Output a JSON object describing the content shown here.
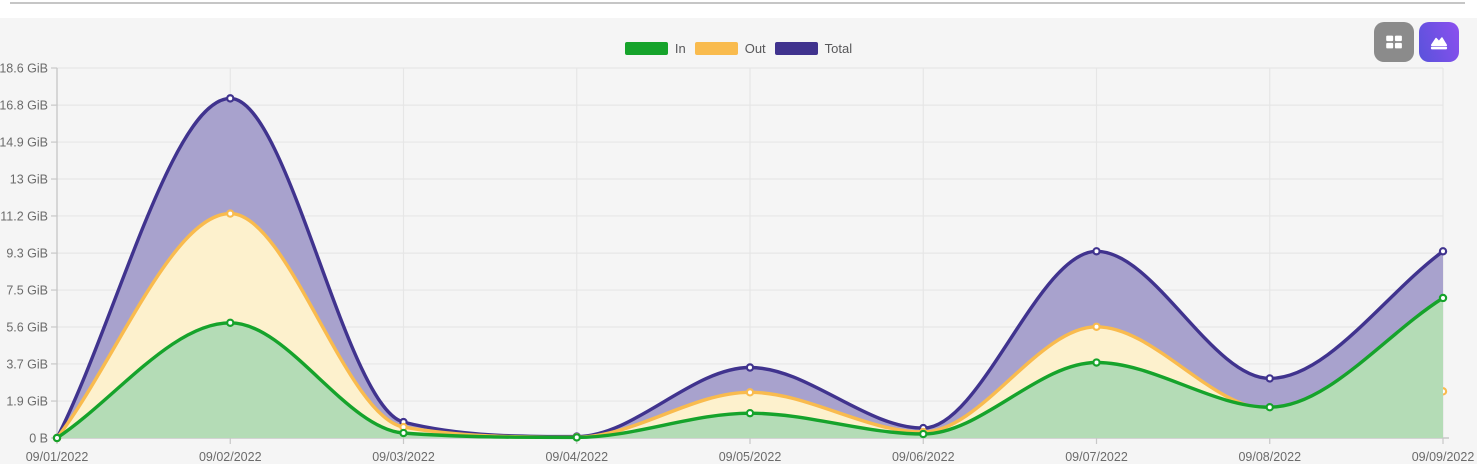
{
  "toolbar": {
    "table_button_label": "table view",
    "chart_button_label": "area chart view",
    "table_button_color": "#8b8b8b",
    "chart_button_gradient": [
      "#5952db",
      "#8c50ef"
    ]
  },
  "chart_data": {
    "type": "area",
    "title": "",
    "xlabel": "",
    "ylabel": "",
    "unit": "GiB",
    "x_labels": [
      "09/01/2022",
      "09/02/2022",
      "09/03/2022",
      "09/04/2022",
      "09/05/2022",
      "09/06/2022",
      "09/07/2022",
      "09/08/2022",
      "09/09/2022"
    ],
    "ytick_labels": [
      "0 B",
      "1.9 GiB",
      "3.7 GiB",
      "5.6 GiB",
      "7.5 GiB",
      "9.3 GiB",
      "11.2 GiB",
      "13 GiB",
      "14.9 GiB",
      "16.8 GiB",
      "18.6 GiB"
    ],
    "ytick_values": [
      0,
      1.86,
      3.73,
      5.59,
      7.45,
      9.31,
      11.18,
      13.04,
      14.9,
      16.76,
      18.63
    ],
    "ylim": [
      0,
      18.63
    ],
    "grid": true,
    "legend_position": "top-center",
    "legend": [
      {
        "label": "In",
        "color": "#16a32b"
      },
      {
        "label": "Out",
        "color": "#f9bb4e"
      },
      {
        "label": "Total",
        "color": "#40338e"
      }
    ],
    "series": [
      {
        "name": "Total",
        "line_color": "#40338e",
        "fill_color": "#a8a2cd",
        "values": [
          0,
          17.1,
          0.8,
          0.07,
          3.55,
          0.5,
          9.4,
          3.0,
          9.4
        ]
      },
      {
        "name": "Out",
        "line_color": "#f9bb4e",
        "fill_color": "#fdf1cd",
        "values": [
          0,
          11.3,
          0.55,
          0.04,
          2.3,
          0.3,
          5.6,
          1.45,
          2.35
        ]
      },
      {
        "name": "In",
        "line_color": "#16a32b",
        "fill_color": "#b4dcb6",
        "values": [
          0,
          5.8,
          0.25,
          0.03,
          1.25,
          0.2,
          3.8,
          1.55,
          7.05
        ]
      }
    ],
    "colors": {
      "background": "#f5f5f5",
      "gridline": "#e6e6e6",
      "axis": "#c8c8c8",
      "tick_text": "#6b6b6b"
    }
  }
}
